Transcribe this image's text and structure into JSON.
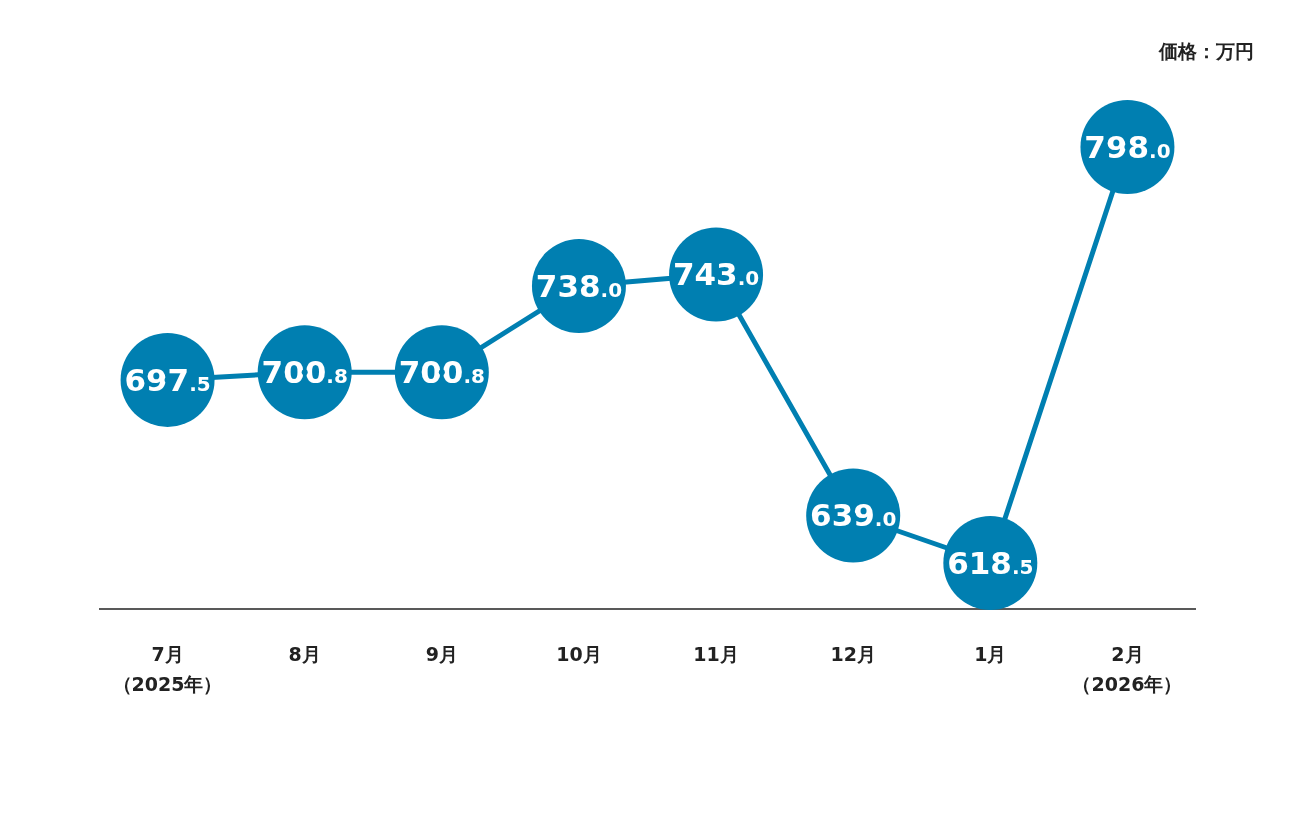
{
  "chart_data": {
    "type": "line",
    "ylabel": "価格：万円",
    "categories": [
      "7月（2025年）",
      "8月",
      "9月",
      "10月",
      "11月",
      "12月",
      "1月",
      "2月（2026年）"
    ],
    "series": [
      {
        "color": "#007fb1",
        "values": [
          697.5,
          700.8,
          700.8,
          738.0,
          743.0,
          639.0,
          618.5,
          798.0
        ],
        "value_labels": [
          "697.5",
          "700.8",
          "700.8",
          "738.0",
          "743.0",
          "639.0",
          "618.5",
          "798.0"
        ]
      }
    ],
    "marker": "circle",
    "line_style": "solid"
  }
}
